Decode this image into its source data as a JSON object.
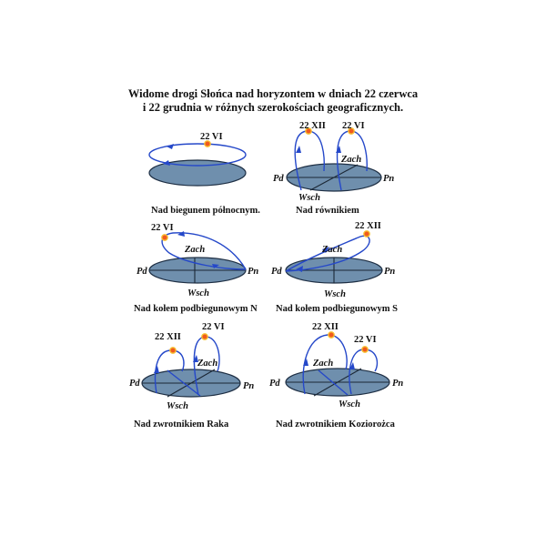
{
  "title": {
    "line1": "Widome drogi Słońca nad horyzontem w dniach 22 czerwca",
    "line2": "i 22 grudnia w różnych szerokościach geograficznych."
  },
  "dates": {
    "june": "22 VI",
    "december": "22 XII"
  },
  "directions": {
    "west": "Zach",
    "east": "Wsch",
    "north": "Pn",
    "south": "Pd"
  },
  "panels": [
    {
      "caption": "Nad biegunem północnym."
    },
    {
      "caption": "Nad równikiem"
    },
    {
      "caption": "Nad kołem podbiegunowym N"
    },
    {
      "caption": "Nad kołem podbiegunowym S"
    },
    {
      "caption": "Nad zwrotnikiem Raka"
    },
    {
      "caption": "Nad zwrotnikiem Koziorożca"
    }
  ],
  "colors": {
    "horizon_disk": "#6f8fad",
    "sun_path": "#2548c9",
    "sun": "#f05a1e"
  }
}
